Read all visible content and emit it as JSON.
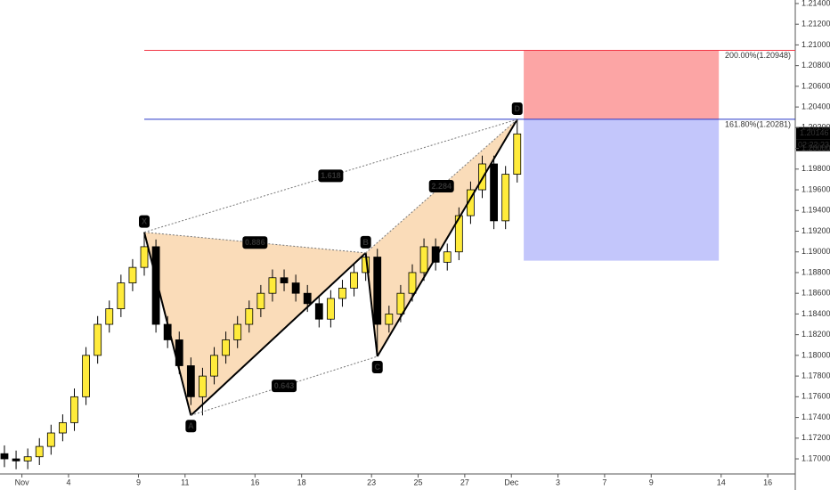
{
  "chart_data": {
    "type": "candlestick",
    "x": [
      -0.75,
      -0.25,
      0.25,
      0.75,
      1.25,
      1.75,
      2.25,
      2.75,
      3.25,
      3.75,
      4.25,
      4.75,
      5.25,
      5.75,
      6.25,
      6.75,
      7.25,
      7.75,
      8.25,
      8.75,
      9.25,
      9.75,
      10.25,
      10.75,
      11.25,
      11.75,
      12.25,
      12.75,
      13.25,
      13.75,
      14.25,
      14.75,
      15.25,
      15.75,
      16.25,
      16.75,
      17.25,
      17.75,
      18.25,
      18.75,
      19.25,
      19.75,
      20.25,
      20.75,
      21.25
    ],
    "open": [
      1.1705,
      1.17,
      1.1698,
      1.1702,
      1.1712,
      1.1725,
      1.1735,
      1.176,
      1.18,
      1.183,
      1.1845,
      1.187,
      1.1885,
      1.1905,
      1.183,
      1.1815,
      1.179,
      1.176,
      1.178,
      1.18,
      1.1815,
      1.183,
      1.1845,
      1.186,
      1.1875,
      1.187,
      1.186,
      1.185,
      1.1835,
      1.1855,
      1.1865,
      1.188,
      1.1895,
      1.183,
      1.184,
      1.186,
      1.188,
      1.1905,
      1.189,
      1.19,
      1.1935,
      1.196,
      1.1985,
      1.193,
      1.1975
    ],
    "high": [
      1.1713,
      1.1708,
      1.171,
      1.172,
      1.1733,
      1.1743,
      1.1768,
      1.1808,
      1.1838,
      1.1853,
      1.1878,
      1.1893,
      1.1919,
      1.1912,
      1.1838,
      1.1823,
      1.1798,
      1.1788,
      1.1808,
      1.1823,
      1.1838,
      1.1853,
      1.1868,
      1.1883,
      1.1883,
      1.1878,
      1.1868,
      1.1858,
      1.1863,
      1.1873,
      1.1888,
      1.1899,
      1.1903,
      1.1848,
      1.1868,
      1.1888,
      1.1913,
      1.1913,
      1.1908,
      1.1943,
      1.1968,
      1.1993,
      1.1993,
      1.1983,
      1.2028
    ],
    "low": [
      1.1692,
      1.169,
      1.169,
      1.1694,
      1.1704,
      1.1717,
      1.1727,
      1.1752,
      1.1792,
      1.1822,
      1.1837,
      1.1862,
      1.1877,
      1.1822,
      1.1807,
      1.1782,
      1.1752,
      1.1742,
      1.1772,
      1.1792,
      1.1807,
      1.1822,
      1.1837,
      1.1852,
      1.1862,
      1.1852,
      1.1842,
      1.1827,
      1.1827,
      1.1847,
      1.1857,
      1.1872,
      1.1799,
      1.1822,
      1.1832,
      1.1852,
      1.1872,
      1.1882,
      1.1882,
      1.1892,
      1.1927,
      1.1952,
      1.1922,
      1.1922,
      1.1967
    ],
    "close": [
      1.17,
      1.1698,
      1.1702,
      1.1712,
      1.1725,
      1.1735,
      1.176,
      1.18,
      1.183,
      1.1845,
      1.187,
      1.1885,
      1.1905,
      1.183,
      1.1815,
      1.179,
      1.176,
      1.178,
      1.18,
      1.1815,
      1.183,
      1.1845,
      1.186,
      1.1875,
      1.187,
      1.186,
      1.185,
      1.1835,
      1.1855,
      1.1865,
      1.188,
      1.1895,
      1.183,
      1.184,
      1.186,
      1.188,
      1.1905,
      1.189,
      1.19,
      1.1935,
      1.196,
      1.1985,
      1.193,
      1.1975,
      1.2014
    ],
    "up_color": "#ffeb3b",
    "down_color": "#000000",
    "xlim": [
      -0.94,
      33.18
    ],
    "ylim": [
      1.16854,
      1.21434
    ],
    "xticks": [
      {
        "value": 0,
        "label": "Nov"
      },
      {
        "value": 2,
        "label": "4"
      },
      {
        "value": 5,
        "label": "9"
      },
      {
        "value": 7,
        "label": "11"
      },
      {
        "value": 10,
        "label": "16"
      },
      {
        "value": 12,
        "label": "18"
      },
      {
        "value": 15,
        "label": "23"
      },
      {
        "value": 17,
        "label": "25"
      },
      {
        "value": 19,
        "label": "27"
      },
      {
        "value": 21,
        "label": "Dec"
      },
      {
        "value": 23,
        "label": "3"
      },
      {
        "value": 25,
        "label": "7"
      },
      {
        "value": 27,
        "label": "9"
      },
      {
        "value": 30,
        "label": "14"
      },
      {
        "value": 32,
        "label": "16"
      }
    ],
    "yticks": [
      {
        "value": 1.17,
        "label": "1.17000"
      },
      {
        "value": 1.172,
        "label": "1.17200"
      },
      {
        "value": 1.174,
        "label": "1.17400"
      },
      {
        "value": 1.176,
        "label": "1.17600"
      },
      {
        "value": 1.178,
        "label": "1.17800"
      },
      {
        "value": 1.18,
        "label": "1.18000"
      },
      {
        "value": 1.182,
        "label": "1.18200"
      },
      {
        "value": 1.184,
        "label": "1.18400"
      },
      {
        "value": 1.186,
        "label": "1.18600"
      },
      {
        "value": 1.188,
        "label": "1.18800"
      },
      {
        "value": 1.19,
        "label": "1.19000"
      },
      {
        "value": 1.192,
        "label": "1.19200"
      },
      {
        "value": 1.194,
        "label": "1.19400"
      },
      {
        "value": 1.196,
        "label": "1.19600"
      },
      {
        "value": 1.198,
        "label": "1.19800"
      },
      {
        "value": 1.2,
        "label": "1.20000"
      },
      {
        "value": 1.202,
        "label": "1.20200"
      },
      {
        "value": 1.204,
        "label": "1.20400"
      },
      {
        "value": 1.206,
        "label": "1.20600"
      },
      {
        "value": 1.208,
        "label": "1.20800"
      },
      {
        "value": 1.21,
        "label": "1.21000"
      },
      {
        "value": 1.212,
        "label": "1.21200"
      },
      {
        "value": 1.214,
        "label": "1.21400"
      }
    ],
    "pattern": {
      "fill": "#f9d6ad",
      "points": [
        {
          "label": "X",
          "x": 5.25,
          "y": 1.1919
        },
        {
          "label": "A",
          "x": 7.25,
          "y": 1.1742
        },
        {
          "label": "B",
          "x": 14.75,
          "y": 1.1899
        },
        {
          "label": "C",
          "x": 15.25,
          "y": 1.1799
        },
        {
          "label": "D",
          "x": 21.25,
          "y": 1.2028
        }
      ],
      "ratios": [
        {
          "from": "X",
          "to": "D",
          "label": "1.618"
        },
        {
          "from": "X",
          "to": "B",
          "label": "0.886"
        },
        {
          "from": "B",
          "to": "D",
          "label": "2.284"
        },
        {
          "from": "A",
          "to": "C",
          "label": "0.643"
        }
      ]
    },
    "levels": [
      {
        "label": "200.00%(1.20948)",
        "value": 1.20948,
        "x0": 5.25,
        "color": "#f23645"
      },
      {
        "label": "161.80%(1.20281)",
        "value": 1.20281,
        "x0": 5.25,
        "color": "#2736c8"
      }
    ],
    "zones": [
      {
        "color": "#fca5a5",
        "top": 1.20948,
        "bottom": 1.20281,
        "x": [
          21.53,
          29.9
        ]
      },
      {
        "color": "#c3c6fb",
        "top": 1.20281,
        "bottom": 1.18915,
        "x": [
          21.53,
          29.9
        ]
      }
    ],
    "last_price": {
      "value": 1.20146,
      "label": "1.20146"
    },
    "countdown": "02:22:23"
  }
}
